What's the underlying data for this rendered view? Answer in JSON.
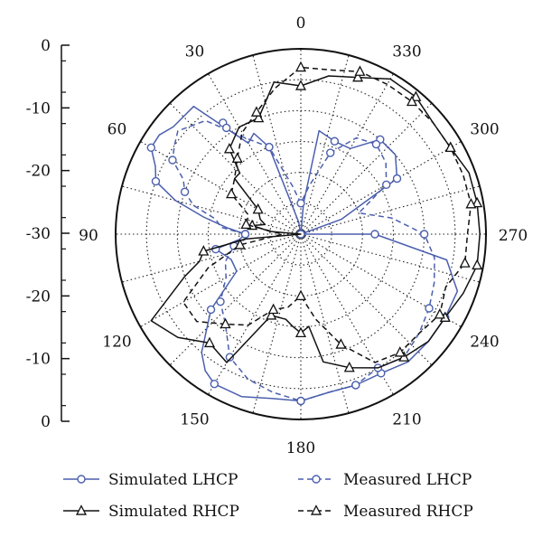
{
  "chart_data": {
    "type": "polar-line",
    "title": "",
    "angle_labels": [
      "0",
      "30",
      "60",
      "90",
      "120",
      "150",
      "180",
      "210",
      "240",
      "270",
      "300",
      "330"
    ],
    "radial_tick_labels": [
      "0",
      "-10",
      "-20",
      "-30",
      "-20",
      "-10",
      "0"
    ],
    "radial_range_db": [
      -30,
      0
    ],
    "angle_direction": "counterclockwise",
    "grid": true,
    "legend_position": "bottom",
    "series": [
      {
        "name": "Simulated LHCP",
        "color": "#4b5fae",
        "dash": "solid",
        "marker": "circle",
        "theta": [
          0,
          10,
          20,
          25,
          30,
          40,
          50,
          55,
          60,
          65,
          70,
          75,
          80,
          85,
          90,
          95,
          100,
          110,
          120,
          130,
          140,
          145,
          150,
          160,
          170,
          180,
          190,
          200,
          210,
          220,
          230,
          240,
          250,
          260,
          270,
          280,
          290,
          300,
          310,
          320,
          330,
          340,
          350,
          355,
          360
        ],
        "r": [
          -30,
          -28,
          -15,
          -12,
          -13,
          -3,
          -3,
          -2,
          -2,
          -4,
          -5,
          -9,
          -14,
          -18,
          -21,
          -20,
          -16,
          -18,
          -18,
          -11,
          -5,
          -3,
          -2,
          -2,
          -3,
          -3,
          -4,
          -4,
          -4,
          -3,
          -3,
          -3,
          -3,
          -6,
          -18,
          -30,
          -23,
          -12,
          -10,
          -10,
          -14,
          -14,
          -13,
          -25,
          -30
        ],
        "markers_theta": [
          0,
          20,
          35,
          60,
          70,
          90,
          100,
          130,
          150,
          180,
          200,
          210,
          240,
          270,
          300,
          320,
          340
        ]
      },
      {
        "name": "Measured LHCP",
        "color": "#4b5fae",
        "dash": "dashed",
        "marker": "circle",
        "theta": [
          0,
          10,
          20,
          30,
          40,
          50,
          55,
          60,
          65,
          70,
          75,
          80,
          85,
          90,
          95,
          100,
          110,
          120,
          130,
          140,
          150,
          160,
          170,
          180,
          190,
          200,
          210,
          220,
          230,
          240,
          250,
          260,
          270,
          280,
          290,
          300,
          310,
          320,
          330,
          340,
          350,
          360
        ],
        "r": [
          -25,
          -22,
          -15,
          -12,
          -6,
          -4,
          -5,
          -6,
          -9,
          -10,
          -12,
          -16,
          -17,
          -21,
          -21,
          -19,
          -17,
          -16,
          -13,
          -11,
          -7,
          -5,
          -4,
          -3,
          -4,
          -4,
          -5,
          -4,
          -5,
          -6,
          -7,
          -8,
          -10,
          -15,
          -20,
          -14,
          -12,
          -11,
          -12,
          -16,
          -22,
          -25
        ],
        "markers_theta": [
          0,
          20,
          35,
          60,
          70,
          90,
          100,
          130,
          150,
          180,
          200,
          210,
          240,
          270,
          300,
          320,
          340
        ]
      },
      {
        "name": "Simulated RHCP",
        "color": "#111111",
        "dash": "solid",
        "marker": "triangle",
        "theta": [
          0,
          10,
          20,
          30,
          40,
          45,
          50,
          60,
          70,
          75,
          80,
          85,
          90,
          95,
          100,
          105,
          110,
          120,
          130,
          140,
          150,
          160,
          170,
          175,
          180,
          185,
          190,
          200,
          210,
          220,
          230,
          240,
          250,
          260,
          270,
          280,
          290,
          300,
          310,
          320,
          330,
          340,
          350,
          360
        ],
        "r": [
          -6,
          -5,
          -10,
          -10,
          -12,
          -16,
          -16,
          -22,
          -23,
          -24,
          -22,
          -25,
          -30,
          -21,
          -14,
          -13,
          -10,
          -2,
          -4,
          -7,
          -6,
          -16,
          -16,
          -15,
          -14,
          -15,
          -9,
          -7,
          -5,
          -4,
          -3,
          -3,
          -2,
          -1,
          -1,
          -1,
          -1,
          -2,
          -2,
          -1,
          -1,
          -3,
          -4,
          -6
        ],
        "markers_theta": [
          0,
          20,
          40,
          60,
          80,
          100,
          140,
          160,
          180,
          200,
          220,
          240,
          260,
          280,
          300,
          320,
          340
        ]
      },
      {
        "name": "Measured RHCP",
        "color": "#111111",
        "dash": "dashed",
        "marker": "triangle",
        "theta": [
          0,
          10,
          20,
          30,
          40,
          50,
          60,
          70,
          80,
          90,
          100,
          110,
          120,
          130,
          140,
          150,
          160,
          170,
          180,
          190,
          200,
          210,
          220,
          230,
          240,
          250,
          260,
          270,
          280,
          290,
          300,
          310,
          320,
          330,
          340,
          350,
          360
        ],
        "r": [
          -3,
          -6,
          -9,
          -11,
          -14,
          -16,
          -17,
          -21,
          -21,
          -27,
          -20,
          -14,
          -8,
          -8,
          -11,
          -13,
          -17,
          -18,
          -20,
          -16,
          -11,
          -6,
          -5,
          -5,
          -4,
          -5,
          -3,
          -3,
          -2,
          -2,
          -2,
          -2,
          -2,
          -2,
          -2,
          -3,
          -3
        ],
        "markers_theta": [
          0,
          20,
          40,
          60,
          80,
          100,
          140,
          160,
          180,
          200,
          220,
          240,
          260,
          280,
          300,
          320,
          340
        ]
      }
    ]
  }
}
